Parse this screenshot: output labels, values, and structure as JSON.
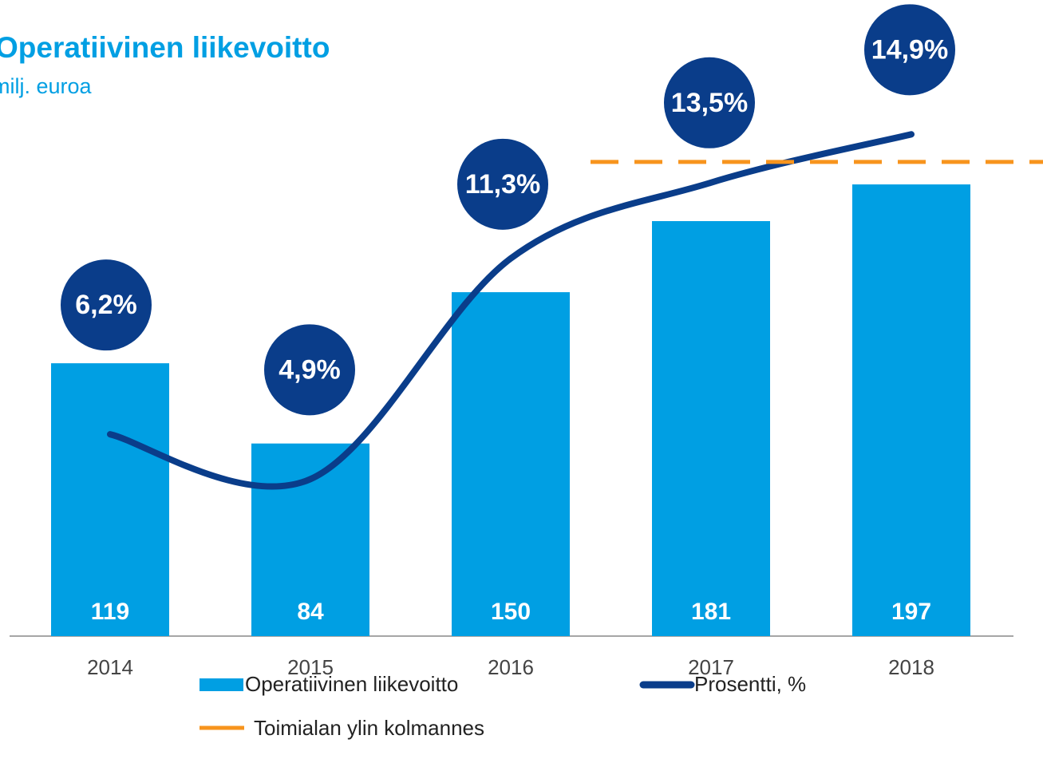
{
  "chart_data": {
    "type": "bar_line",
    "title": "Operatiivinen liikevoitto",
    "subtitle": "milj. euroa",
    "categories": [
      "2014",
      "2015",
      "2016",
      "2017",
      "2018"
    ],
    "series": [
      {
        "name": "Operatiivinen liikevoitto",
        "color": "#009fe3",
        "type": "bar",
        "values": [
          119,
          84,
          150,
          181,
          197
        ]
      },
      {
        "name": "Prosentti, %",
        "color": "#0a3d8a",
        "type": "line",
        "axis": "y2",
        "values": [
          6.2,
          4.9,
          11.3,
          13.5,
          14.9
        ],
        "value_labels": [
          "6,2%",
          "4,9%",
          "11,3%",
          "13,5%",
          "14,9%"
        ]
      }
    ],
    "reference_line": {
      "name": "Toimialan ylin kolmannes",
      "value": 14.1,
      "axis": "y2",
      "color": "#f7941d"
    },
    "ylim": [
      0,
      220
    ],
    "y2lim": [
      0,
      15
    ]
  }
}
